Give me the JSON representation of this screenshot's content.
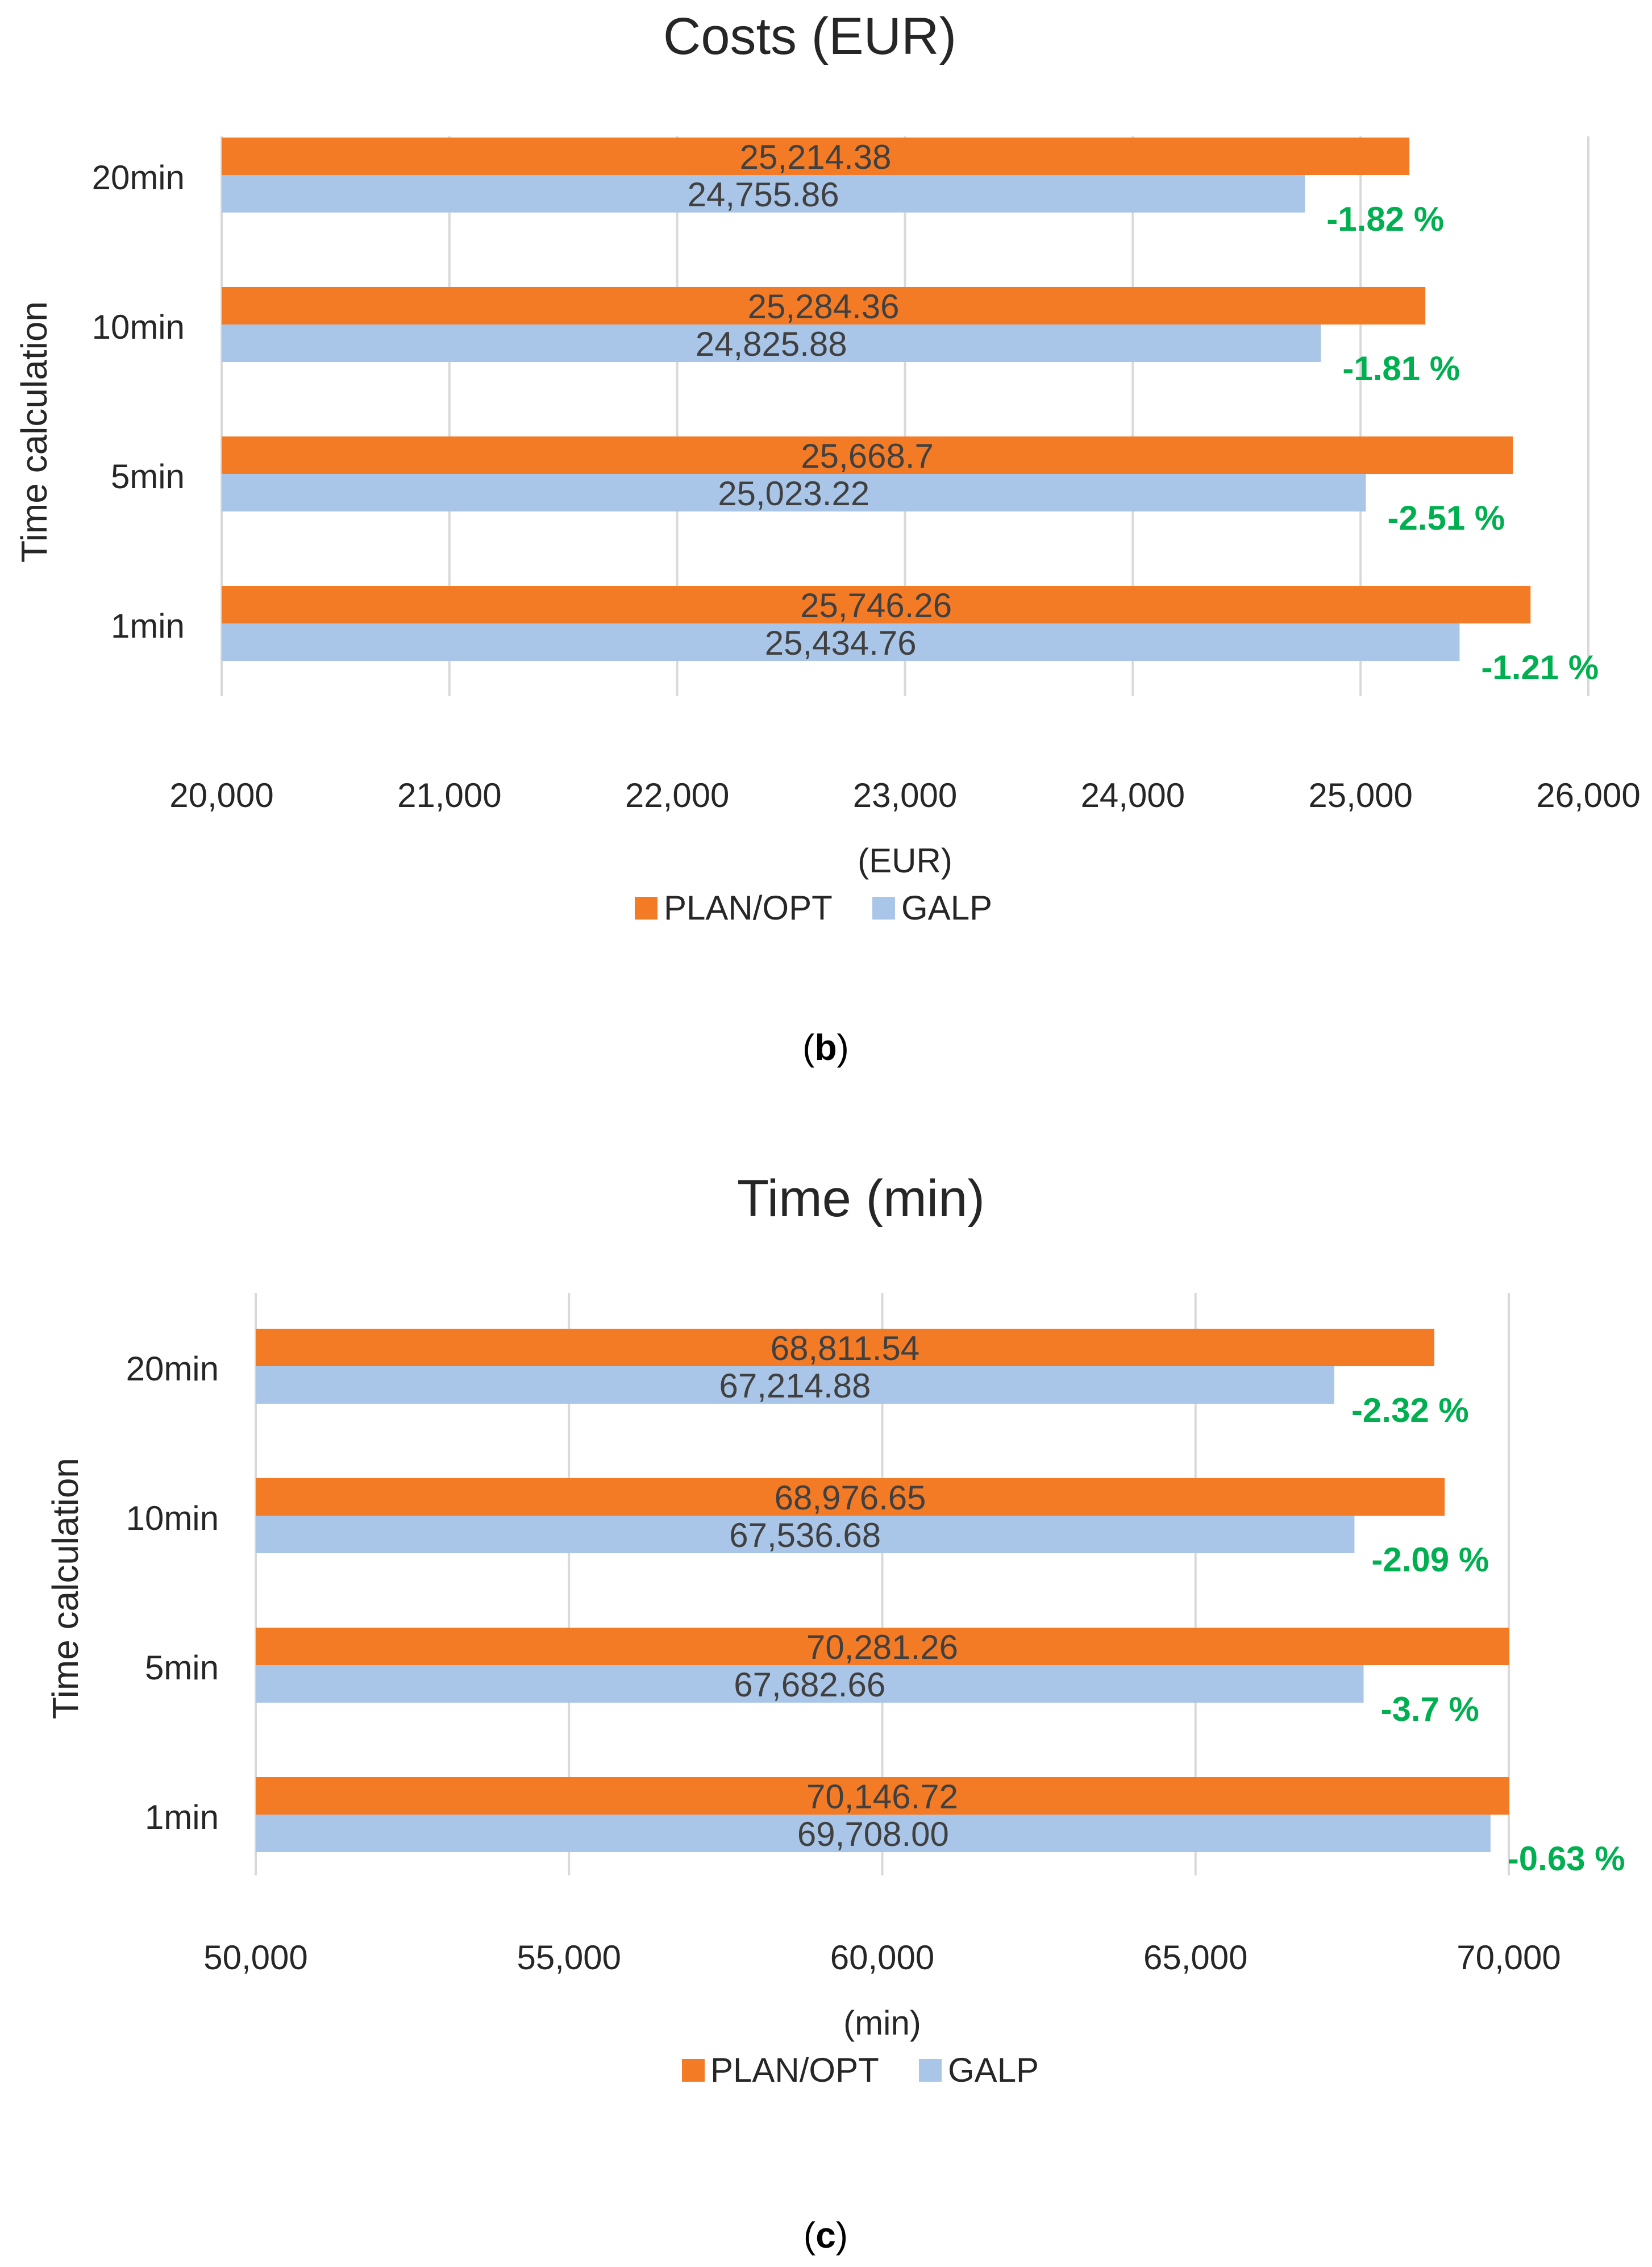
{
  "colors": {
    "plan": "#F47B26",
    "galp": "#A9C6E8",
    "grid": "#D9D9D9",
    "text": "#404040",
    "diff": "#00B050"
  },
  "panels": [
    {
      "panel_label": "b",
      "chart_data": {
        "type": "bar",
        "orientation": "horizontal",
        "title": "Costs (EUR)",
        "xlabel": "(EUR)",
        "ylabel": "Time calculation",
        "categories": [
          "20min",
          "10min",
          "5min",
          "1min"
        ],
        "series": [
          {
            "name": "PLAN/OPT",
            "values": [
              25214.38,
              25284.36,
              25668.7,
              25746.26
            ],
            "labels": [
              "25,214.38",
              "25,284.36",
              "25,668.7",
              "25,746.26"
            ]
          },
          {
            "name": "GALP",
            "values": [
              24755.86,
              24825.88,
              25023.22,
              25434.76
            ],
            "labels": [
              "24,755.86",
              "24,825.88",
              "25,023.22",
              "25,434.76"
            ]
          }
        ],
        "differences": [
          "-1.82 %",
          "-1.81 %",
          "-2.51 %",
          "-1.21 %"
        ],
        "xlim": [
          20000,
          26000
        ],
        "xticks": [
          20000,
          21000,
          22000,
          23000,
          24000,
          25000,
          26000
        ],
        "xtick_labels": [
          "20,000",
          "21,000",
          "22,000",
          "23,000",
          "24,000",
          "25,000",
          "26,000"
        ],
        "legend": [
          "PLAN/OPT",
          "GALP"
        ],
        "legend_position": "bottom",
        "grid": true
      }
    },
    {
      "panel_label": "c",
      "chart_data": {
        "type": "bar",
        "orientation": "horizontal",
        "title": "Time (min)",
        "xlabel": "(min)",
        "ylabel": "Time calculation",
        "categories": [
          "20min",
          "10min",
          "5min",
          "1min"
        ],
        "series": [
          {
            "name": "PLAN/OPT",
            "values": [
              68811.54,
              68976.65,
              70281.26,
              70146.72
            ],
            "labels": [
              "68,811.54",
              "68,976.65",
              "70,281.26",
              "70,146.72"
            ]
          },
          {
            "name": "GALP",
            "values": [
              67214.88,
              67536.68,
              67682.66,
              69708.0
            ],
            "labels": [
              "67,214.88",
              "67,536.68",
              "67,682.66",
              "69,708.00"
            ]
          }
        ],
        "differences": [
          "-2.32 %",
          "-2.09 %",
          "-3.7 %",
          "-0.63 %"
        ],
        "xlim": [
          50000,
          70000
        ],
        "xticks": [
          50000,
          55000,
          60000,
          65000,
          70000
        ],
        "xtick_labels": [
          "50,000",
          "55,000",
          "60,000",
          "65,000",
          "70,000"
        ],
        "legend": [
          "PLAN/OPT",
          "GALP"
        ],
        "legend_position": "bottom",
        "grid": true
      }
    }
  ]
}
